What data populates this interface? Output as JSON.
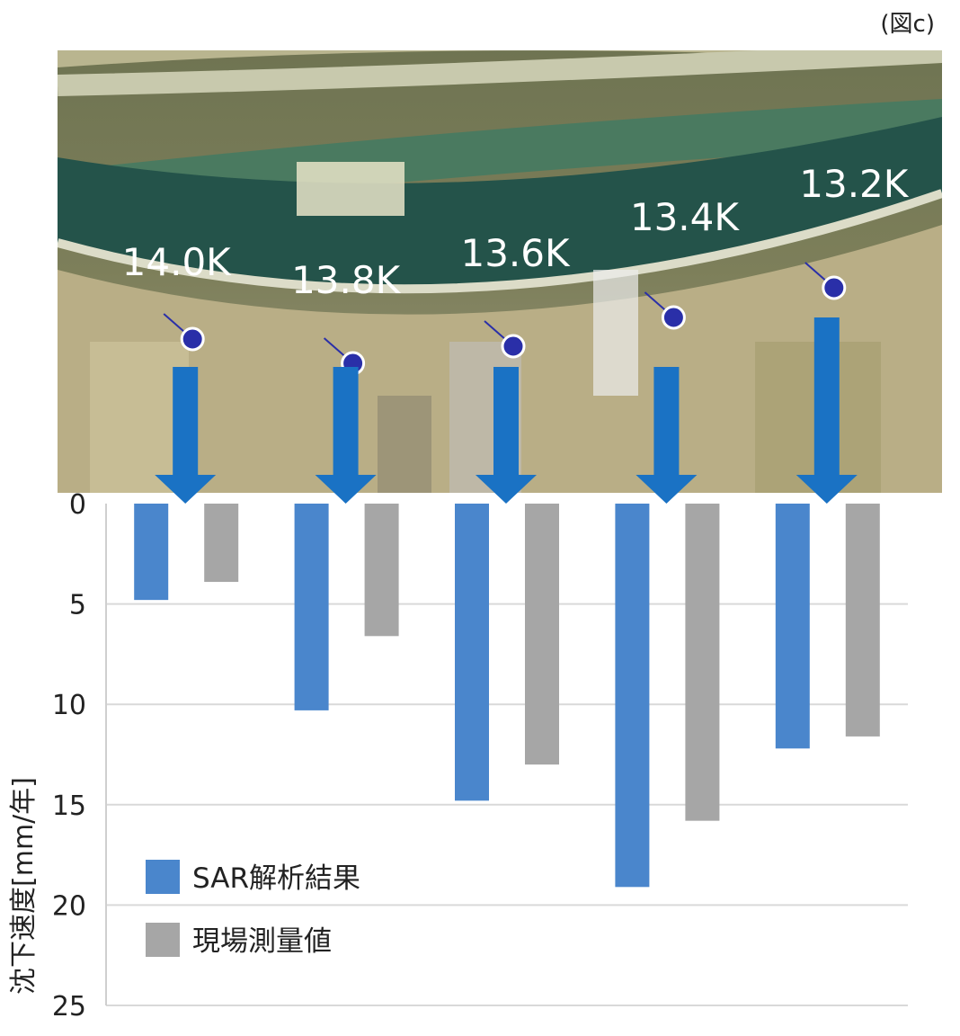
{
  "figure_label": "(図c)",
  "colors": {
    "sar": "#4a86cc",
    "field": "#a6a6a6",
    "arrow": "#1a72c4",
    "marker": "#2a2fa8",
    "grid": "#d9d9d9"
  },
  "chart_data": {
    "type": "bar",
    "categories": [
      "14.0K",
      "13.8K",
      "13.6K",
      "13.4K",
      "13.2K"
    ],
    "series": [
      {
        "name": "SAR解析結果",
        "values": [
          4.8,
          10.3,
          14.8,
          19.1,
          12.2
        ]
      },
      {
        "name": "現場測量値",
        "values": [
          3.9,
          6.6,
          13.0,
          15.8,
          11.6
        ]
      }
    ],
    "ylabel": "沈下速度[mm/年]",
    "yticks": [
      0,
      5,
      10,
      15,
      20,
      25
    ],
    "ylim": [
      0,
      25
    ],
    "y_inverted": true,
    "grid": true,
    "legend_position": "bottom-left"
  }
}
